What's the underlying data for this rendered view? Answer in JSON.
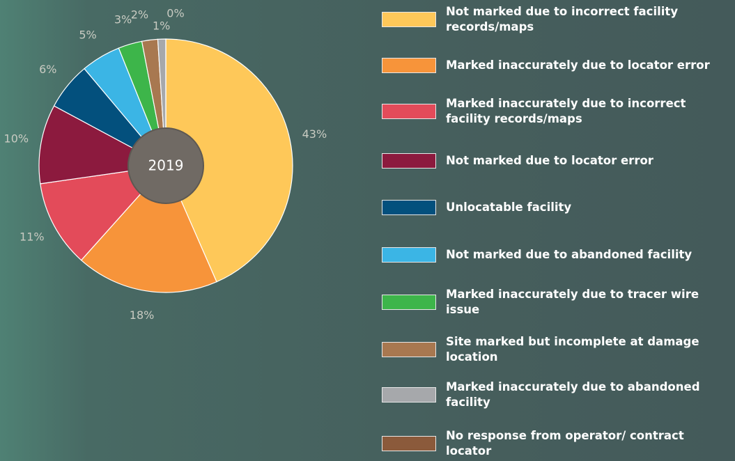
{
  "chart_data": {
    "type": "pie",
    "center_label": "2019",
    "categories": [
      "Not marked due to incorrect facility records/maps",
      "Marked inaccurately due to locator error",
      "Marked inaccurately due to incorrect facility records/maps",
      "Not marked due to locator error",
      "Unlocatable facility",
      "Not marked due to abandoned facility",
      "Marked inaccurately due to tracer wire issue",
      "Site marked but incomplete at damage location",
      "Marked inaccurately due to abandoned facility",
      "No response from operator/ contract locator"
    ],
    "values": [
      43,
      18,
      11,
      10,
      6,
      5,
      3,
      2,
      1,
      0
    ],
    "value_labels": [
      "43%",
      "18%",
      "11%",
      "10%",
      "6%",
      "5%",
      "3%",
      "2%",
      "1%",
      "0%"
    ],
    "colors": [
      "#fec859",
      "#f7943a",
      "#e34b5a",
      "#8c1a3e",
      "#03507d",
      "#3bb5e5",
      "#3db54a",
      "#a87850",
      "#a6a8ab",
      "#8b5a3b"
    ]
  }
}
